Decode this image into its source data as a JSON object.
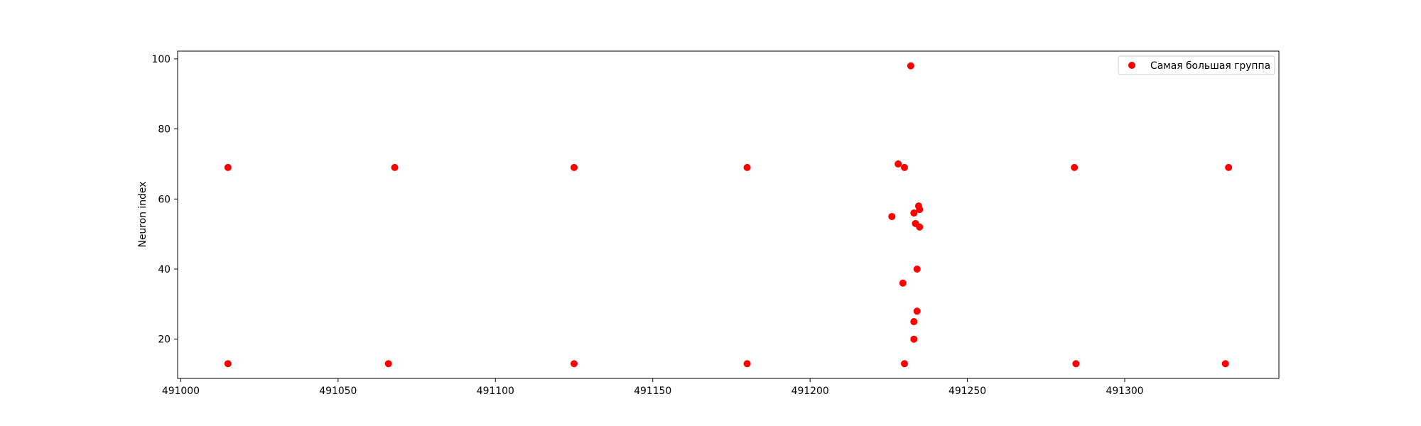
{
  "chart_data": {
    "type": "scatter",
    "title": "",
    "xlabel": "",
    "ylabel": "Neuron index",
    "xlim": [
      490999,
      491349
    ],
    "ylim": [
      8.8,
      102.2
    ],
    "xticks": [
      491000,
      491050,
      491100,
      491150,
      491200,
      491250,
      491300
    ],
    "yticks": [
      20,
      40,
      60,
      80,
      100
    ],
    "grid": false,
    "legend_position": "top-right",
    "colors": {
      "marker": "#ff0000",
      "axes": "#000000",
      "background": "#ffffff"
    },
    "series": [
      {
        "name": "Самая большая группа",
        "color": "#ff0000",
        "x": [
          491015,
          491015,
          491068,
          491066,
          491125,
          491125,
          491180,
          491180,
          491228,
          491230,
          491230,
          491232,
          491226,
          491234.5,
          491234.8,
          491233,
          491233.5,
          491234.8,
          491234,
          491229.5,
          491234,
          491233,
          491233,
          491284,
          491284.5,
          491333,
          491332
        ],
        "y": [
          69,
          13,
          69,
          13,
          69,
          13,
          69,
          13,
          70,
          69,
          13,
          98,
          55,
          58,
          57,
          56,
          53,
          52,
          40,
          36,
          28,
          25,
          20,
          69,
          13,
          69,
          13
        ]
      }
    ]
  }
}
